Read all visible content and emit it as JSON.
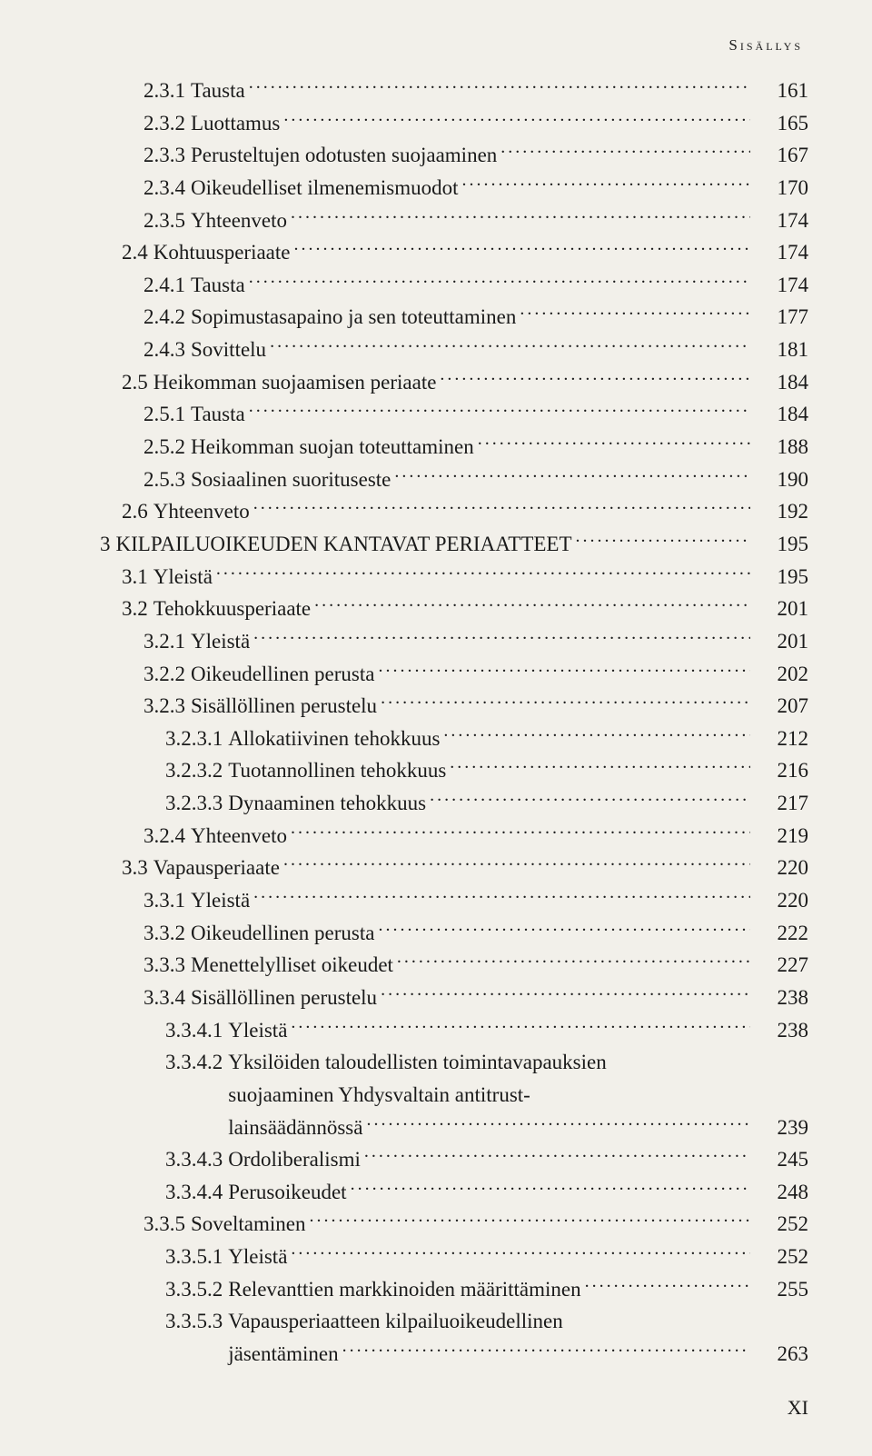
{
  "header": "Sisällys",
  "footer": "XI",
  "indentUnit": 24,
  "rows": [
    {
      "indent": 2,
      "num": "2.3.1",
      "label": "Tausta",
      "page": "161"
    },
    {
      "indent": 2,
      "num": "2.3.2",
      "label": "Luottamus",
      "page": "165"
    },
    {
      "indent": 2,
      "num": "2.3.3",
      "label": "Perusteltujen odotusten suojaaminen",
      "page": "167"
    },
    {
      "indent": 2,
      "num": "2.3.4",
      "label": "Oikeudelliset ilmenemismuodot",
      "page": "170"
    },
    {
      "indent": 2,
      "num": "2.3.5",
      "label": "Yhteenveto",
      "page": "174"
    },
    {
      "indent": 1,
      "num": "2.4",
      "label": "Kohtuusperiaate",
      "page": "174"
    },
    {
      "indent": 2,
      "num": "2.4.1",
      "label": "Tausta",
      "page": "174"
    },
    {
      "indent": 2,
      "num": "2.4.2",
      "label": "Sopimustasapaino ja sen toteuttaminen",
      "page": "177"
    },
    {
      "indent": 2,
      "num": "2.4.3",
      "label": "Sovittelu",
      "page": "181"
    },
    {
      "indent": 1,
      "num": "2.5",
      "label": "Heikomman suojaamisen periaate",
      "page": "184"
    },
    {
      "indent": 2,
      "num": "2.5.1",
      "label": "Tausta",
      "page": "184"
    },
    {
      "indent": 2,
      "num": "2.5.2",
      "label": "Heikomman suojan toteuttaminen",
      "page": "188"
    },
    {
      "indent": 2,
      "num": "2.5.3",
      "label": "Sosiaalinen suorituseste",
      "page": "190"
    },
    {
      "indent": 1,
      "num": "2.6",
      "label": "Yhteenveto",
      "page": "192"
    },
    {
      "indent": 0,
      "num": "3",
      "label": "KILPAILUOIKEUDEN KANTAVAT PERIAATTEET",
      "page": "195"
    },
    {
      "indent": 1,
      "num": "3.1",
      "label": "Yleistä",
      "page": "195"
    },
    {
      "indent": 1,
      "num": "3.2",
      "label": "Tehokkuusperiaate",
      "page": "201"
    },
    {
      "indent": 2,
      "num": "3.2.1",
      "label": "Yleistä",
      "page": "201"
    },
    {
      "indent": 2,
      "num": "3.2.2",
      "label": "Oikeudellinen perusta",
      "page": "202"
    },
    {
      "indent": 2,
      "num": "3.2.3",
      "label": "Sisällöllinen perustelu",
      "page": "207"
    },
    {
      "indent": 3,
      "num": "3.2.3.1",
      "label": "Allokatiivinen tehokkuus",
      "page": "212"
    },
    {
      "indent": 3,
      "num": "3.2.3.2",
      "label": "Tuotannollinen tehokkuus",
      "page": "216"
    },
    {
      "indent": 3,
      "num": "3.2.3.3",
      "label": "Dynaaminen tehokkuus",
      "page": "217"
    },
    {
      "indent": 2,
      "num": "3.2.4",
      "label": "Yhteenveto",
      "page": "219"
    },
    {
      "indent": 1,
      "num": "3.3",
      "label": "Vapausperiaate",
      "page": "220"
    },
    {
      "indent": 2,
      "num": "3.3.1",
      "label": "Yleistä",
      "page": "220"
    },
    {
      "indent": 2,
      "num": "3.3.2",
      "label": "Oikeudellinen perusta",
      "page": "222"
    },
    {
      "indent": 2,
      "num": "3.3.3",
      "label": "Menettelylliset oikeudet",
      "page": "227"
    },
    {
      "indent": 2,
      "num": "3.3.4",
      "label": "Sisällöllinen perustelu",
      "page": "238"
    },
    {
      "indent": 3,
      "num": "3.3.4.1",
      "label": "Yleistä",
      "page": "238"
    },
    {
      "indent": 3,
      "num": "3.3.4.2",
      "label": "Yksilöiden taloudellisten toimintavapauksien suojaaminen Yhdysvaltain antitrust-lainsäädännössä",
      "page": "239",
      "multiline": true,
      "lines": [
        "Yksilöiden taloudellisten toimintavapauksien",
        "suojaaminen Yhdysvaltain antitrust-",
        "lainsäädännössä"
      ]
    },
    {
      "indent": 3,
      "num": "3.3.4.3",
      "label": "Ordoliberalismi",
      "page": "245"
    },
    {
      "indent": 3,
      "num": "3.3.4.4",
      "label": "Perusoikeudet",
      "page": "248"
    },
    {
      "indent": 2,
      "num": "3.3.5",
      "label": "Soveltaminen",
      "page": "252"
    },
    {
      "indent": 3,
      "num": "3.3.5.1",
      "label": "Yleistä",
      "page": "252"
    },
    {
      "indent": 3,
      "num": "3.3.5.2",
      "label": "Relevanttien markkinoiden määrittäminen",
      "page": "255"
    },
    {
      "indent": 3,
      "num": "3.3.5.3",
      "label": "Vapausperiaatteen kilpailuoikeudellinen jäsentäminen",
      "page": "263",
      "multiline": true,
      "lines": [
        "Vapausperiaatteen kilpailuoikeudellinen",
        "jäsentäminen"
      ]
    }
  ]
}
